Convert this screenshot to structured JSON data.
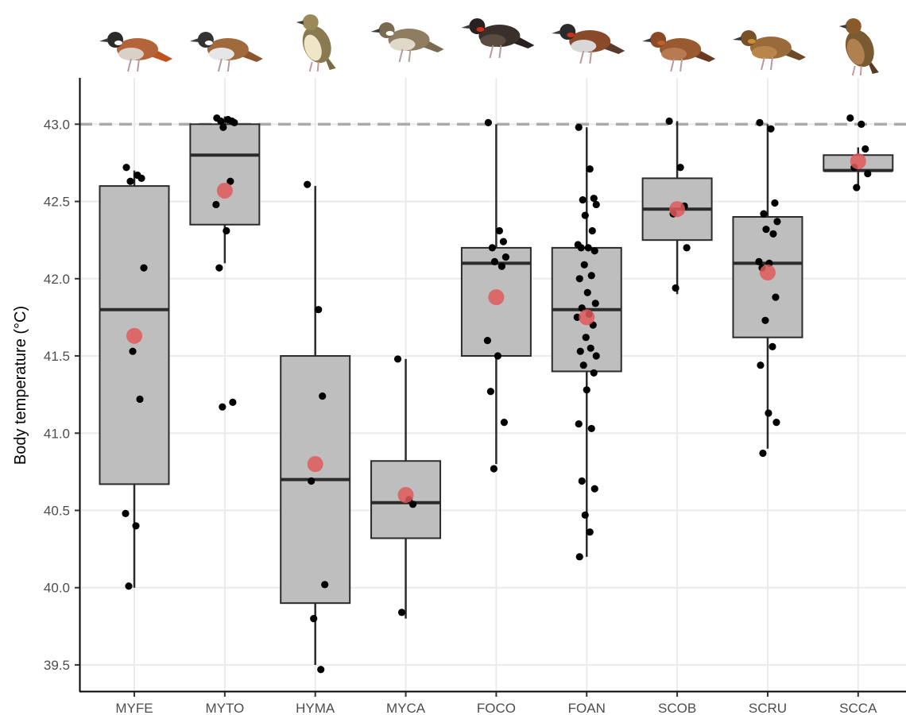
{
  "chart_data": {
    "type": "box",
    "ylabel": "Body temperature (°C)",
    "xlabel": "",
    "ylim": [
      39.33,
      43.3
    ],
    "yticks": [
      "39.5",
      "40.0",
      "40.5",
      "41.0",
      "41.5",
      "42.0",
      "42.5",
      "43.0"
    ],
    "reference_line": 43.0,
    "grid": "major, light gray",
    "colors": {
      "box_fill": "#bebebe",
      "box_stroke": "#2b2b2b",
      "point": "#000000",
      "mean": "#e05a5a",
      "reference": "#aaaaaa",
      "grid": "#ebebeb"
    },
    "categories": [
      "MYFE",
      "MYTO",
      "HYMA",
      "MYCA",
      "FOCO",
      "FOAN",
      "SCOB",
      "SCRU",
      "SCCA"
    ],
    "species_icons": [
      "bird-illustration-myfe",
      "bird-illustration-myto",
      "bird-illustration-hyma",
      "bird-illustration-myca",
      "bird-illustration-foco",
      "bird-illustration-foan",
      "bird-illustration-scob",
      "bird-illustration-scru",
      "bird-illustration-scca"
    ],
    "boxes": [
      {
        "category": "MYFE",
        "whisker_low": 40.0,
        "q1": 40.67,
        "median": 41.8,
        "q3": 42.6,
        "whisker_high": 42.7,
        "mean": 41.63
      },
      {
        "category": "MYTO",
        "whisker_low": 42.1,
        "q1": 42.35,
        "median": 42.8,
        "q3": 43.0,
        "whisker_high": 43.05,
        "mean": 42.57
      },
      {
        "category": "HYMA",
        "whisker_low": 39.5,
        "q1": 39.9,
        "median": 40.7,
        "q3": 41.5,
        "whisker_high": 42.6,
        "mean": 40.8
      },
      {
        "category": "MYCA",
        "whisker_low": 39.8,
        "q1": 40.32,
        "median": 40.55,
        "q3": 40.82,
        "whisker_high": 41.48,
        "mean": 40.6
      },
      {
        "category": "FOCO",
        "whisker_low": 40.8,
        "q1": 41.5,
        "median": 42.1,
        "q3": 42.2,
        "whisker_high": 43.0,
        "mean": 41.88
      },
      {
        "category": "FOAN",
        "whisker_low": 40.2,
        "q1": 41.4,
        "median": 41.8,
        "q3": 42.2,
        "whisker_high": 42.98,
        "mean": 41.75
      },
      {
        "category": "SCOB",
        "whisker_low": 41.9,
        "q1": 42.25,
        "median": 42.45,
        "q3": 42.65,
        "whisker_high": 43.02,
        "mean": 42.45
      },
      {
        "category": "SCRU",
        "whisker_low": 40.9,
        "q1": 41.62,
        "median": 42.1,
        "q3": 42.4,
        "whisker_high": 43.0,
        "mean": 42.04
      },
      {
        "category": "SCCA",
        "whisker_low": 42.6,
        "q1": 42.7,
        "median": 42.7,
        "q3": 42.8,
        "whisker_high": 42.85,
        "mean": 42.76
      }
    ],
    "points": [
      {
        "category": "MYFE",
        "values": [
          42.72,
          42.67,
          42.65,
          42.63,
          42.07,
          41.53,
          41.22,
          40.48,
          40.4,
          40.01
        ]
      },
      {
        "category": "MYTO",
        "values": [
          43.04,
          43.03,
          43.02,
          43.02,
          43.01,
          42.98,
          42.63,
          42.48,
          42.31,
          42.07,
          41.2,
          41.17
        ]
      },
      {
        "category": "HYMA",
        "values": [
          42.61,
          41.8,
          41.24,
          40.69,
          40.02,
          39.8,
          39.47
        ]
      },
      {
        "category": "MYCA",
        "values": [
          41.48,
          40.57,
          40.54,
          39.84
        ]
      },
      {
        "category": "FOCO",
        "values": [
          43.01,
          42.31,
          42.24,
          42.2,
          42.14,
          42.11,
          42.08,
          41.6,
          41.5,
          41.27,
          41.07,
          40.77
        ]
      },
      {
        "category": "FOAN",
        "values": [
          42.98,
          42.71,
          42.52,
          42.51,
          42.48,
          42.41,
          42.31,
          42.22,
          42.2,
          42.2,
          42.18,
          42.09,
          42.02,
          42.0,
          41.91,
          41.84,
          41.81,
          41.77,
          41.75,
          41.7,
          41.62,
          41.55,
          41.53,
          41.5,
          41.44,
          41.39,
          41.28,
          41.06,
          41.03,
          40.69,
          40.64,
          40.47,
          40.36,
          40.2
        ]
      },
      {
        "category": "SCOB",
        "values": [
          43.02,
          42.72,
          42.47,
          42.42,
          42.2,
          41.94
        ]
      },
      {
        "category": "SCRU",
        "values": [
          43.01,
          42.97,
          42.49,
          42.42,
          42.37,
          42.32,
          42.29,
          42.11,
          42.1,
          42.07,
          41.88,
          41.73,
          41.56,
          41.44,
          41.13,
          41.07,
          40.87
        ]
      },
      {
        "category": "SCCA",
        "values": [
          43.04,
          43.0,
          42.84,
          42.72,
          42.68,
          42.59
        ]
      }
    ]
  }
}
